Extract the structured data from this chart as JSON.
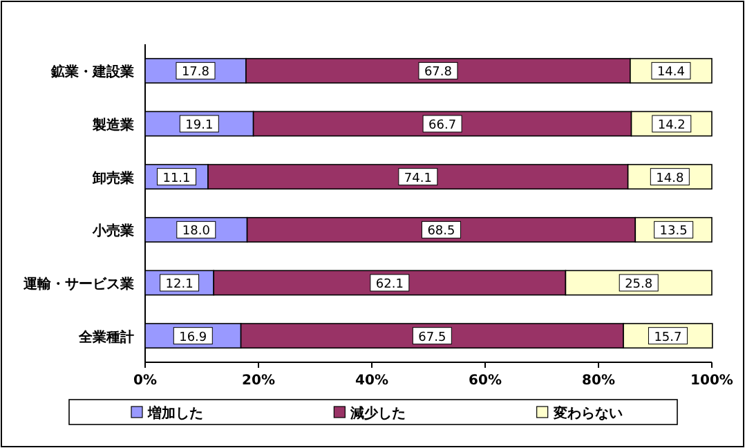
{
  "chart_data": {
    "type": "bar",
    "orientation": "horizontal",
    "stacked": true,
    "legend": "bottom",
    "categories": [
      "鉱業・建設業",
      "製造業",
      "卸売業",
      "小売業",
      "運輸・サービス業",
      "全業種計"
    ],
    "xlim": [
      0,
      100
    ],
    "xticks": [
      {
        "value": 0,
        "label": "0%"
      },
      {
        "value": 20,
        "label": "20%"
      },
      {
        "value": 40,
        "label": "40%"
      },
      {
        "value": 60,
        "label": "60%"
      },
      {
        "value": 80,
        "label": "80%"
      },
      {
        "value": 100,
        "label": "100%"
      }
    ],
    "series": [
      {
        "name": "増加した",
        "color": "#9999ff",
        "values": [
          17.8,
          19.1,
          11.1,
          18.0,
          12.1,
          16.9
        ],
        "value_labels": [
          "17.8",
          "19.1",
          "11.1",
          "18.0",
          "12.1",
          "16.9"
        ]
      },
      {
        "name": "減少した",
        "color": "#993366",
        "values": [
          67.8,
          66.7,
          74.1,
          68.5,
          62.1,
          67.5
        ],
        "value_labels": [
          "67.8",
          "66.7",
          "74.1",
          "68.5",
          "62.1",
          "67.5"
        ]
      },
      {
        "name": "変わらない",
        "color": "#ffffcc",
        "values": [
          14.4,
          14.2,
          14.8,
          13.5,
          25.8,
          15.7
        ],
        "value_labels": [
          "14.4",
          "14.2",
          "14.8",
          "13.5",
          "25.8",
          "15.7"
        ]
      }
    ]
  }
}
